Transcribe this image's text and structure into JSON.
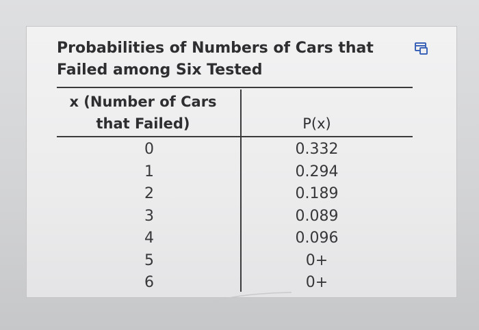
{
  "document": {
    "title_line1": "Probabilities of Numbers of Cars that",
    "title_line2": "Failed among Six Tested",
    "copy_icon": "copy-table-icon"
  },
  "table": {
    "headers": {
      "x_line1": "x (Number of Cars",
      "x_line2": "that Failed)",
      "p": "P(x)"
    },
    "rows": [
      {
        "x": "0",
        "p": "0.332"
      },
      {
        "x": "1",
        "p": "0.294"
      },
      {
        "x": "2",
        "p": "0.189"
      },
      {
        "x": "3",
        "p": "0.089"
      },
      {
        "x": "4",
        "p": "0.096"
      },
      {
        "x": "5",
        "p": "0+"
      },
      {
        "x": "6",
        "p": "0+"
      }
    ]
  },
  "colors": {
    "card_background": "#efeff0",
    "text": "#2e2e30",
    "rule": "#3a3a3c",
    "icon_blue": "#3a63b8"
  }
}
